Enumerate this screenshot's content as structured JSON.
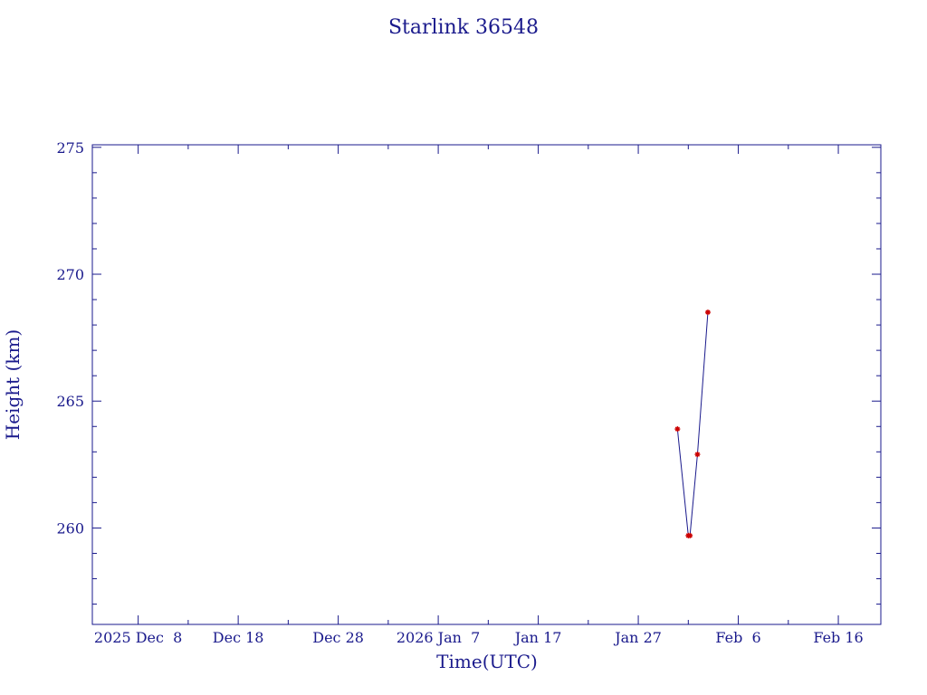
{
  "chart_data": {
    "type": "line",
    "title": "Starlink 36548",
    "xlabel": "Time(UTC)",
    "ylabel": "Height (km)",
    "x_tick_labels": [
      "2025 Dec  8",
      "Dec 18",
      "Dec 28",
      "2026 Jan  7",
      "Jan 17",
      "Jan 27",
      "Feb  6",
      "Feb 16"
    ],
    "x_tick_dates": [
      "2025-12-08",
      "2025-12-18",
      "2025-12-28",
      "2026-01-07",
      "2026-01-17",
      "2026-01-27",
      "2026-02-06",
      "2026-02-16"
    ],
    "xlim": [
      "2025-12-03T10:00",
      "2026-02-20T06:00"
    ],
    "y_ticks": [
      260,
      265,
      270,
      275
    ],
    "y_minor_step": 1,
    "ylim": [
      256.2,
      275.1
    ],
    "grid": false,
    "series": [
      {
        "x": [
          "2026-01-30T22:00",
          "2026-02-01T00:00",
          "2026-02-01T04:00",
          "2026-02-01T22:00",
          "2026-02-02T23:00"
        ],
        "y": [
          263.9,
          259.7,
          259.7,
          262.9,
          268.5
        ],
        "line_color": "#1a1a8c",
        "marker_color": "#cc0000",
        "marker": "asterisk"
      }
    ]
  }
}
